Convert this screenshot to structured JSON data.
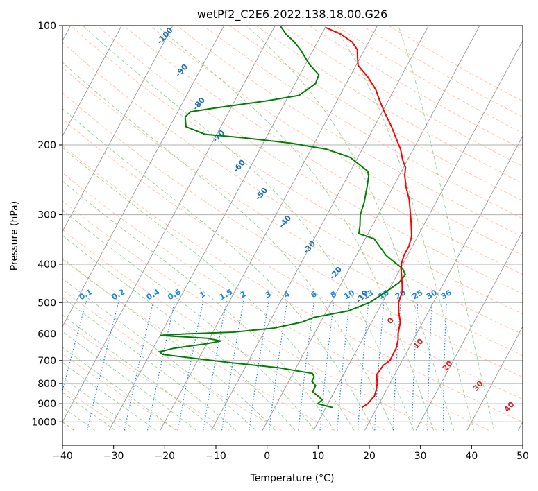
{
  "chart_data": {
    "type": "line",
    "subtype": "skew-t log-p",
    "title": "wetPf2_C2E6.2022.138.18.00.G26",
    "xlabel": "Temperature (°C)",
    "ylabel": "Pressure (hPa)",
    "xlim": [
      -40,
      50
    ],
    "ylim": [
      1050,
      100
    ],
    "x_ticks": [
      -40,
      -30,
      -20,
      -10,
      0,
      10,
      20,
      30,
      40,
      50
    ],
    "x_tick_labels": [
      "−40",
      "−30",
      "−20",
      "−10",
      "0",
      "10",
      "20",
      "30",
      "40",
      "50"
    ],
    "y_ticks": [
      100,
      200,
      300,
      400,
      500,
      600,
      700,
      800,
      900,
      1000
    ],
    "y_tick_labels": [
      "100",
      "200",
      "300",
      "400",
      "500",
      "600",
      "700",
      "800",
      "900",
      "1000"
    ],
    "grid": true,
    "colors": {
      "temperature": "#ff0000",
      "dewpoint": "#008000",
      "dry_adiabat": "#ff7f50",
      "moist_adiabat": "#2ca02c",
      "mixing_ratio": "#1e88e5",
      "isotherm": "#888888",
      "grid": "#b0b0b0"
    },
    "series": [
      {
        "name": "Temperature",
        "points": [
          [
            17,
            920
          ],
          [
            17.8,
            900
          ],
          [
            18.3,
            860
          ],
          [
            18,
            830
          ],
          [
            17.5,
            800
          ],
          [
            17,
            780
          ],
          [
            16.5,
            760
          ],
          [
            16.8,
            720
          ],
          [
            17.6,
            700
          ],
          [
            17.5,
            650
          ],
          [
            17,
            620
          ],
          [
            16.4,
            600
          ],
          [
            16,
            580
          ],
          [
            15.6,
            560
          ],
          [
            14.3,
            530
          ],
          [
            13.2,
            500
          ],
          [
            12.8,
            470
          ],
          [
            12,
            450
          ],
          [
            10.6,
            420
          ],
          [
            9.7,
            400
          ],
          [
            9.3,
            380
          ],
          [
            9.3,
            360
          ],
          [
            8.8,
            340
          ],
          [
            7,
            310
          ],
          [
            4.5,
            275
          ],
          [
            2.5,
            255
          ],
          [
            1,
            238
          ],
          [
            0.4,
            228
          ],
          [
            -1,
            218
          ],
          [
            -2.5,
            205
          ],
          [
            -4.6,
            192
          ],
          [
            -6.6,
            180
          ],
          [
            -9.6,
            165
          ],
          [
            -11.6,
            155
          ],
          [
            -13.6,
            145
          ],
          [
            -16.4,
            135
          ],
          [
            -19.6,
            126
          ],
          [
            -20.6,
            120
          ],
          [
            -21.4,
            115
          ],
          [
            -23.2,
            110
          ],
          [
            -26.3,
            105
          ],
          [
            -30,
            101
          ]
        ]
      },
      {
        "name": "Dewpoint",
        "points": [
          [
            11.3,
            920
          ],
          [
            8,
            900
          ],
          [
            8.5,
            880
          ],
          [
            7.2,
            860
          ],
          [
            5.8,
            840
          ],
          [
            5.7,
            810
          ],
          [
            4.5,
            790
          ],
          [
            4.5,
            770
          ],
          [
            3.8,
            755
          ],
          [
            -3.5,
            730
          ],
          [
            -13,
            710
          ],
          [
            -27.5,
            676
          ],
          [
            -28.4,
            665
          ],
          [
            -26,
            652
          ],
          [
            -20,
            635
          ],
          [
            -17.5,
            625
          ],
          [
            -20.5,
            615
          ],
          [
            -30,
            605
          ],
          [
            -25.4,
            600
          ],
          [
            -16,
            594
          ],
          [
            -8.5,
            580
          ],
          [
            -3.6,
            560
          ],
          [
            -1.8,
            545
          ],
          [
            4.2,
            525
          ],
          [
            7.5,
            500
          ],
          [
            9.6,
            470
          ],
          [
            11.2,
            445
          ],
          [
            11.6,
            425
          ],
          [
            10.4,
            410
          ],
          [
            8.1,
            395
          ],
          [
            5.8,
            380
          ],
          [
            4.1,
            365
          ],
          [
            1.7,
            345
          ],
          [
            -1.8,
            335
          ],
          [
            -2.4,
            320
          ],
          [
            -3.5,
            300
          ],
          [
            -4,
            280
          ],
          [
            -5.1,
            255
          ],
          [
            -5.9,
            240
          ],
          [
            -6.6,
            233
          ],
          [
            -11.5,
            215
          ],
          [
            -17,
            205
          ],
          [
            -24.5,
            198
          ],
          [
            -34.3,
            192
          ],
          [
            -42.3,
            188
          ],
          [
            -46.8,
            180
          ],
          [
            -48,
            170
          ],
          [
            -47.5,
            165
          ],
          [
            -42.7,
            161
          ],
          [
            -34,
            155
          ],
          [
            -28,
            150
          ],
          [
            -26,
            140
          ],
          [
            -26.3,
            133
          ],
          [
            -29.3,
            125
          ],
          [
            -32.5,
            115
          ],
          [
            -34.5,
            110
          ],
          [
            -37,
            105
          ],
          [
            -39,
            100
          ]
        ]
      }
    ],
    "dry_adiabat_labels": [
      "-100",
      "-90",
      "-80",
      "-70",
      "-60",
      "-50",
      "-40",
      "-30",
      "-20",
      "-10"
    ],
    "moist_adiabat_labels": [
      "0",
      "10",
      "20",
      "30",
      "40"
    ],
    "mixing_ratio_labels": [
      "0.1",
      "0.2",
      "0.4",
      "0.6",
      "1",
      "1.5",
      "2",
      "3",
      "4",
      "6",
      "8",
      "10",
      "13",
      "16",
      "20",
      "25",
      "30",
      "36"
    ]
  }
}
